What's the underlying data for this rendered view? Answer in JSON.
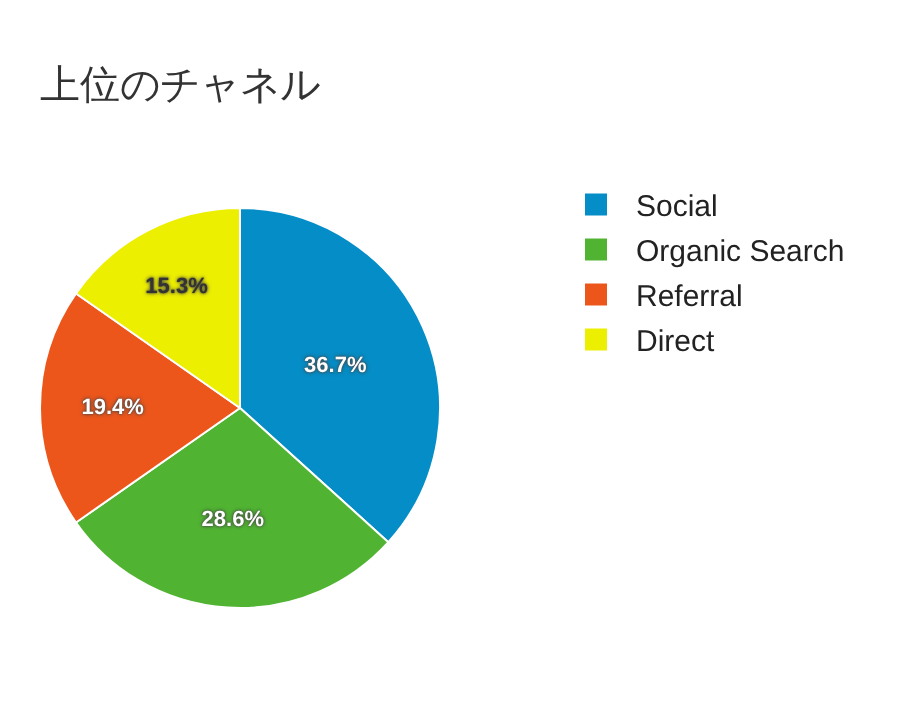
{
  "chart_data": {
    "type": "pie",
    "title": "上位のチャネル",
    "categories": [
      "Social",
      "Organic Search",
      "Referral",
      "Direct"
    ],
    "values": [
      36.7,
      28.6,
      19.4,
      15.3
    ],
    "colors": [
      "#058dc7",
      "#50b432",
      "#ed561b",
      "#edef00"
    ],
    "value_labels": [
      "36.7%",
      "28.6%",
      "19.4%",
      "15.3%"
    ],
    "legend": "right"
  }
}
